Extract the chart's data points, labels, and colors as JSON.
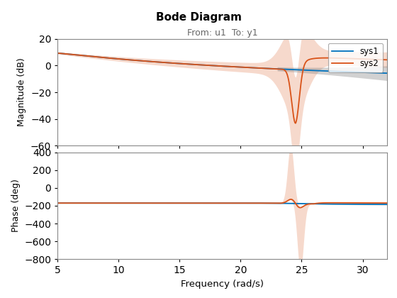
{
  "title": "Bode Diagram",
  "subtitle": "From: u1  To: y1",
  "xlabel": "Frequency (rad/s)",
  "ylabel_mag": "Magnitude (dB)",
  "ylabel_phase": "Phase (deg)",
  "legend": [
    "sys1",
    "sys2"
  ],
  "color_sys1": "#0072BD",
  "color_sys2": "#D95319",
  "color_band_sys1": "#888888",
  "color_band_sys2": "#D95319",
  "freq_min": 5,
  "freq_max": 32,
  "mag_ylim": [
    -60,
    20
  ],
  "phase_ylim": [
    -800,
    400
  ],
  "notch_freq": 24.5,
  "background_color": "#ffffff"
}
